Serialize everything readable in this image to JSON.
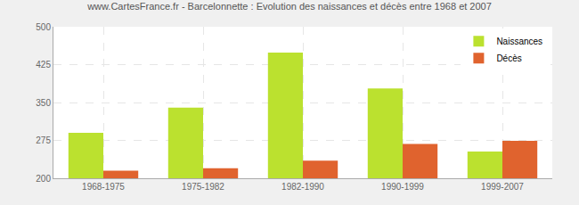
{
  "chart_data": {
    "type": "bar",
    "title": "www.CartesFrance.fr - Barcelonnette : Evolution des naissances et décès entre 1968 et 2007",
    "categories": [
      "1968-1975",
      "1975-1982",
      "1982-1990",
      "1990-1999",
      "1999-2007"
    ],
    "series": [
      {
        "name": "Naissances",
        "color": "#bbe12f",
        "values": [
          290,
          340,
          449,
          378,
          253
        ]
      },
      {
        "name": "Décès",
        "color": "#e0632e",
        "values": [
          215,
          220,
          235,
          268,
          274
        ]
      }
    ],
    "ylim": [
      200,
      500
    ],
    "yticks": [
      200,
      275,
      350,
      425,
      500
    ],
    "grid": true,
    "legend": "top right"
  }
}
